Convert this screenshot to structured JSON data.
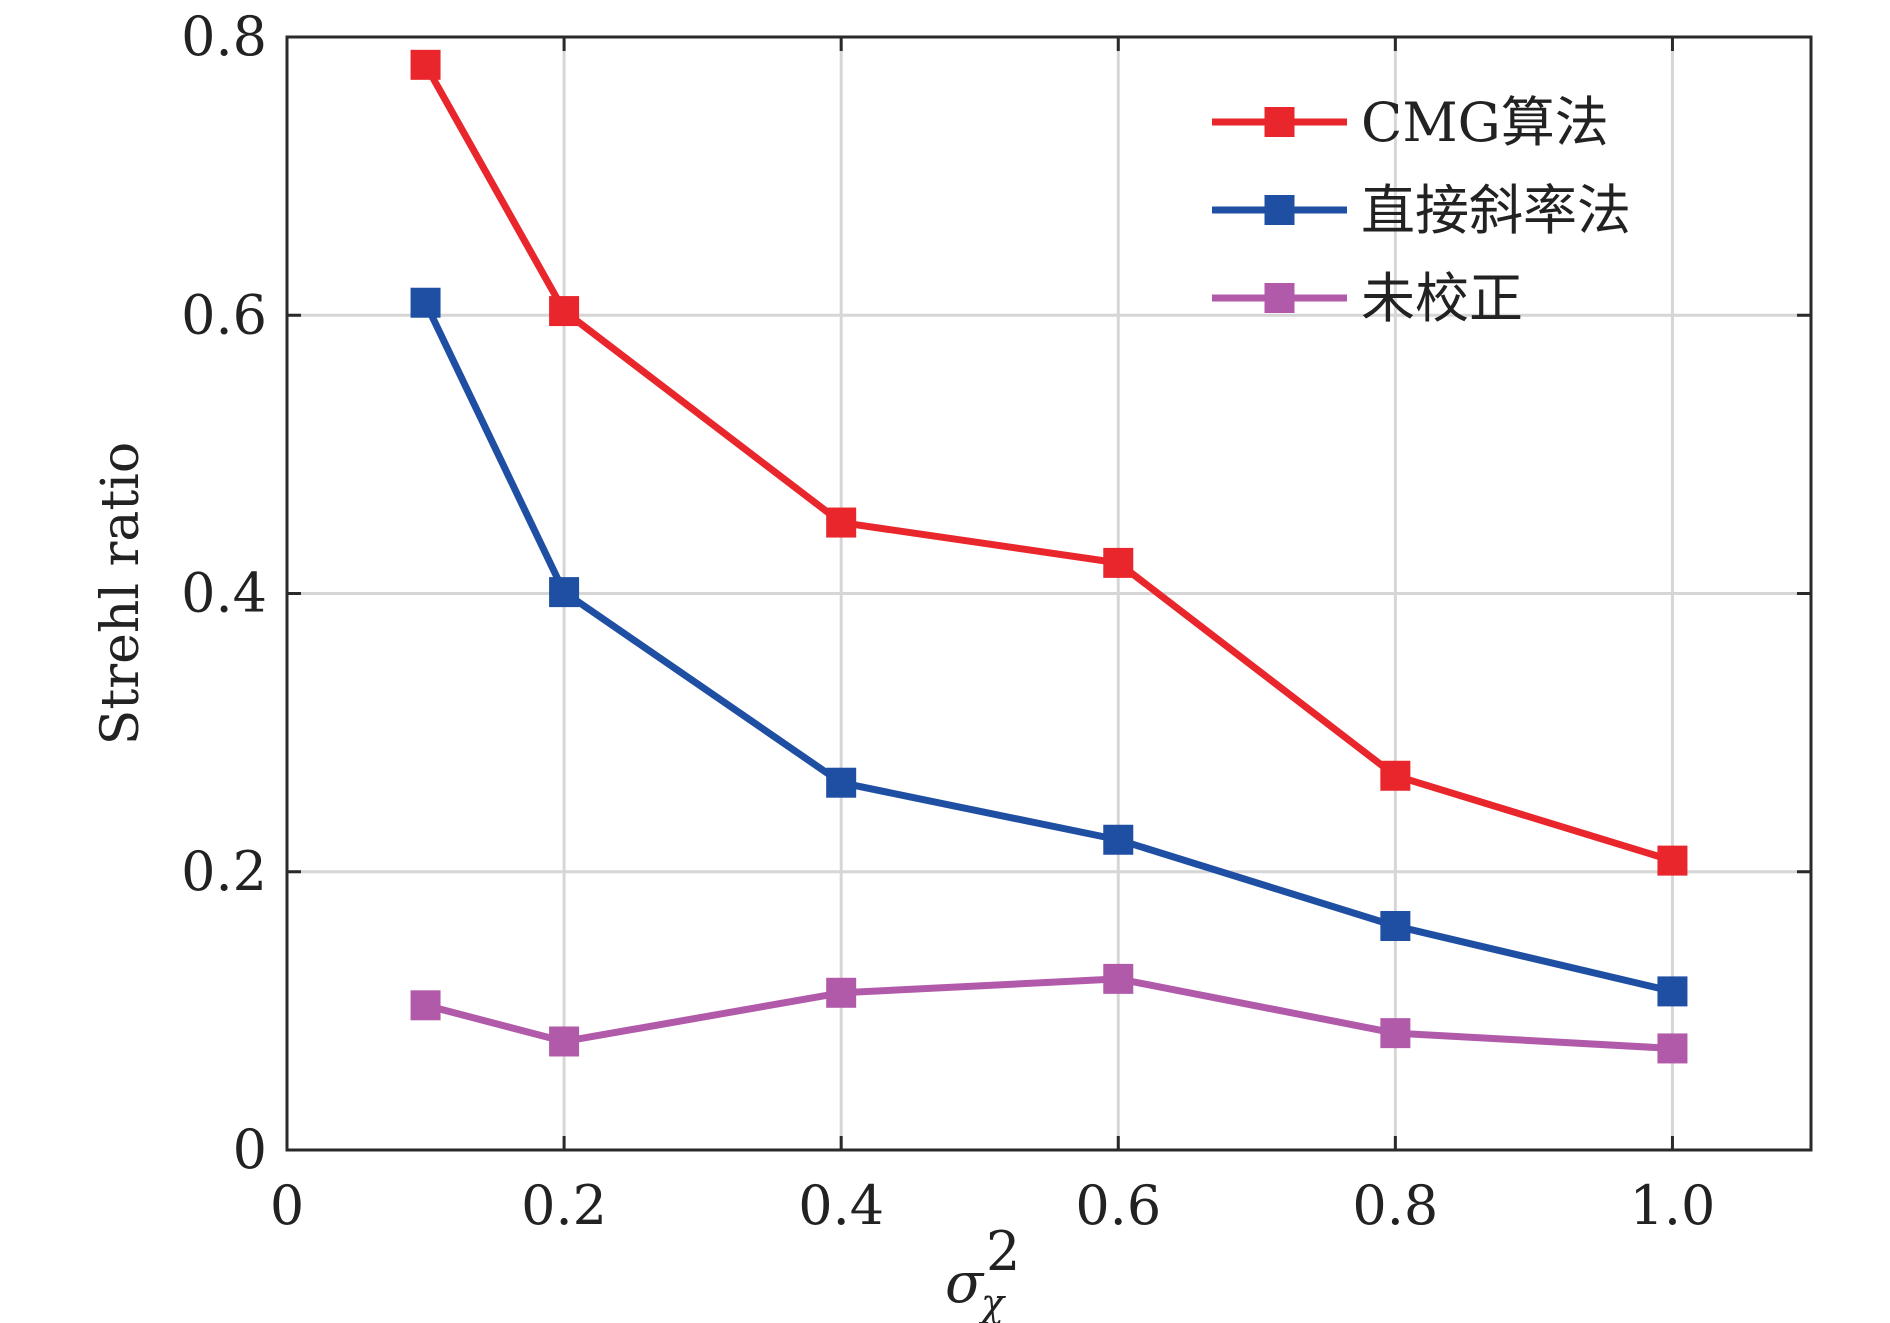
{
  "chart_data": {
    "type": "line",
    "xlabel": "σ",
    "xlabel_subscript": "χ",
    "xlabel_superscript": "2",
    "ylabel": "Strehl ratio",
    "xlim": [
      0,
      1.1
    ],
    "ylim": [
      0,
      0.8
    ],
    "x_ticks": [
      0,
      0.2,
      0.4,
      0.6,
      0.8,
      1.0
    ],
    "x_tick_labels": [
      "0",
      "0.2",
      "0.4",
      "0.6",
      "0.8",
      "1.0"
    ],
    "y_ticks": [
      0,
      0.2,
      0.4,
      0.6,
      0.8
    ],
    "y_tick_labels": [
      "0",
      "0.2",
      "0.4",
      "0.6",
      "0.8"
    ],
    "grid": true,
    "legend_position": "top-right",
    "x": [
      0.1,
      0.2,
      0.4,
      0.6,
      0.8,
      1.0
    ],
    "series": [
      {
        "name": "CMG算法",
        "color": "#e8262b",
        "values": [
          0.78,
          0.603,
          0.451,
          0.422,
          0.269,
          0.208
        ]
      },
      {
        "name": "直接斜率法",
        "color": "#1f4fa3",
        "values": [
          0.609,
          0.401,
          0.264,
          0.223,
          0.161,
          0.114
        ]
      },
      {
        "name": "未校正",
        "color": "#b25aaa",
        "values": [
          0.104,
          0.078,
          0.113,
          0.123,
          0.084,
          0.073
        ]
      }
    ]
  }
}
